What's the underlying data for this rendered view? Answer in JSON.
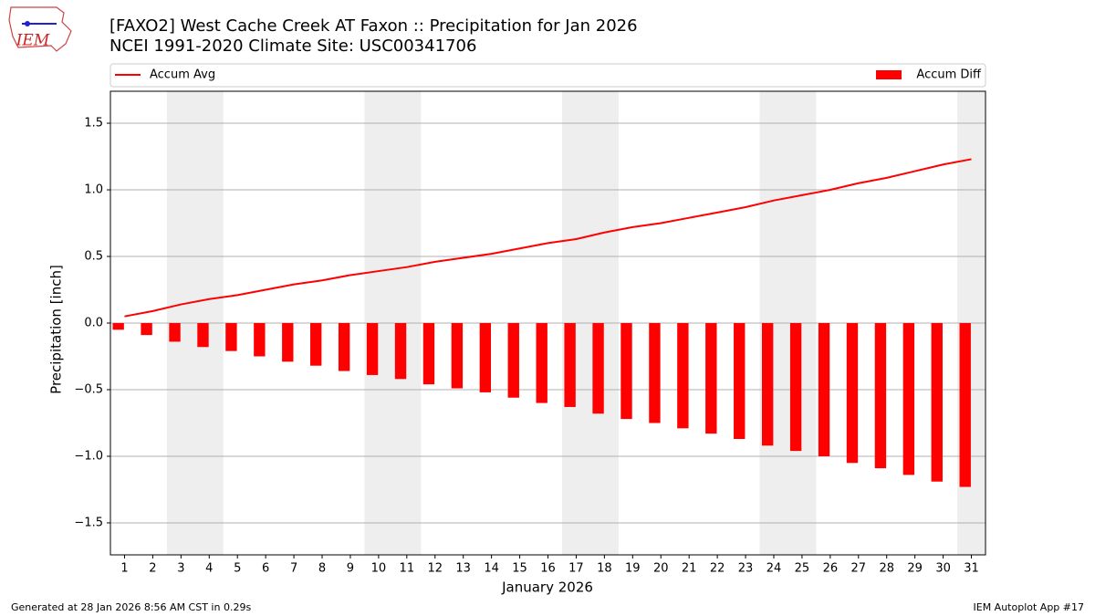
{
  "chart_data": {
    "type": "bar_line",
    "title": "[FAXO2] West Cache Creek  AT Faxon :: Precipitation for Jan 2026",
    "subtitle": "NCEI 1991-2020 Climate Site: USC00341706",
    "logo_text": "IEM",
    "ylabel": "Precipitation [inch]",
    "xlabel": "January 2026",
    "x": [
      1,
      2,
      3,
      4,
      5,
      6,
      7,
      8,
      9,
      10,
      11,
      12,
      13,
      14,
      15,
      16,
      17,
      18,
      19,
      20,
      21,
      22,
      23,
      24,
      25,
      26,
      27,
      28,
      29,
      30,
      31
    ],
    "series": [
      {
        "name": "Accum Avg",
        "kind": "line",
        "color": "#ff0000",
        "values": [
          0.05,
          0.09,
          0.14,
          0.18,
          0.21,
          0.25,
          0.29,
          0.32,
          0.36,
          0.39,
          0.42,
          0.46,
          0.49,
          0.52,
          0.56,
          0.6,
          0.63,
          0.68,
          0.72,
          0.75,
          0.79,
          0.83,
          0.87,
          0.92,
          0.96,
          1.0,
          1.05,
          1.09,
          1.14,
          1.19,
          1.23
        ]
      },
      {
        "name": "Accum Diff",
        "kind": "bar",
        "color": "#ff0000",
        "values": [
          -0.05,
          -0.09,
          -0.14,
          -0.18,
          -0.21,
          -0.25,
          -0.29,
          -0.32,
          -0.36,
          -0.39,
          -0.42,
          -0.46,
          -0.49,
          -0.52,
          -0.56,
          -0.6,
          -0.63,
          -0.68,
          -0.72,
          -0.75,
          -0.79,
          -0.83,
          -0.87,
          -0.92,
          -0.96,
          -1.0,
          -1.05,
          -1.09,
          -1.14,
          -1.19,
          -1.23
        ]
      }
    ],
    "xlim": [
      0.5,
      31.5
    ],
    "xticks": [
      1,
      2,
      3,
      4,
      5,
      6,
      7,
      8,
      9,
      10,
      11,
      12,
      13,
      14,
      15,
      16,
      17,
      18,
      19,
      20,
      21,
      22,
      23,
      24,
      25,
      26,
      27,
      28,
      29,
      30,
      31
    ],
    "ylim": [
      -1.74,
      1.74
    ],
    "yticks": [
      {
        "value": -1.5,
        "label": "−1.5"
      },
      {
        "value": -1.0,
        "label": "−1.0"
      },
      {
        "value": -0.5,
        "label": "−0.5"
      },
      {
        "value": 0,
        "label": "0.0"
      },
      0.5,
      {
        "value": 1.0,
        "label": "1.0"
      },
      1.5
    ],
    "grid": true,
    "shaded_spans": [
      [
        2.5,
        4.5
      ],
      [
        9.5,
        11.5
      ],
      [
        16.5,
        18.5
      ],
      [
        23.5,
        25.5
      ],
      [
        30.5,
        31.5
      ]
    ],
    "shade_color": "#eeeeee",
    "footer_left": "Generated at 28 Jan 2026 8:56 AM CST in 0.29s",
    "footer_right": "IEM Autoplot App #17"
  }
}
